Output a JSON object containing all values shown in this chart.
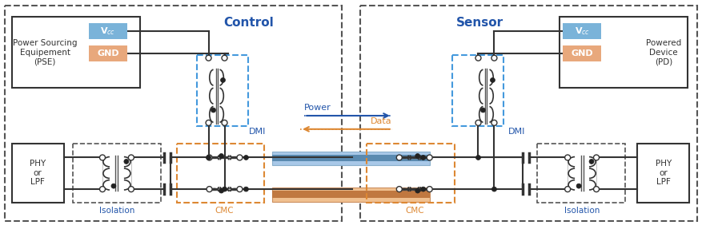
{
  "bg_color": "#ffffff",
  "border_color": "#555555",
  "blue_dashed_color": "#4499dd",
  "orange_dashed_color": "#dd8833",
  "blue_fill": "#7ab3d9",
  "orange_fill": "#e8a87c",
  "blue_label_color": "#2255aa",
  "orange_label_color": "#dd8833",
  "dark_color": "#333333",
  "control_label": "Control",
  "sensor_label": "Sensor",
  "pse_label": "Power Sourcing\nEquipement\n(PSE)",
  "pd_label": "Powered\nDevice\n(PD)",
  "phy_label": "PHY\nor\nLPF",
  "dmi_label": "DMI",
  "isolation_label": "Isolation",
  "cmc_label": "CMC",
  "power_label": "Power",
  "data_label": "Data",
  "vcc_label": "V$_{cc}$",
  "gnd_label": "GND"
}
